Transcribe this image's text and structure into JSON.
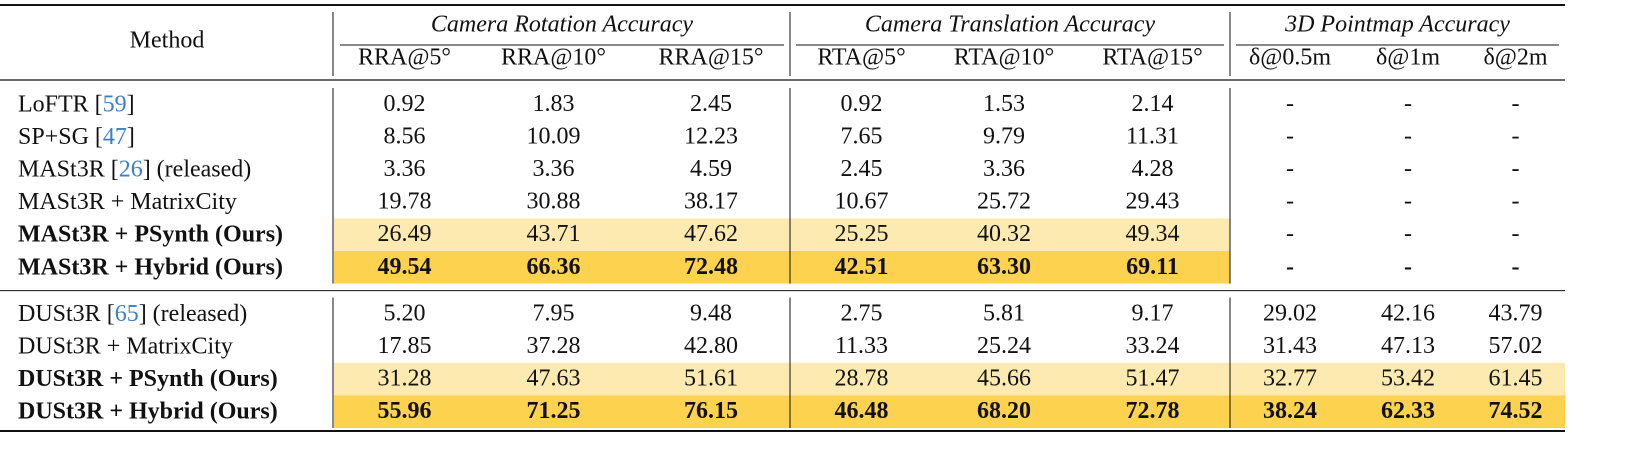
{
  "table": {
    "header": {
      "method": "Method",
      "groups": [
        {
          "title": "Camera Rotation Accuracy",
          "columns": [
            "RRA@5°",
            "RRA@10°",
            "RRA@15°"
          ]
        },
        {
          "title": "Camera Translation Accuracy",
          "columns": [
            "RTA@5°",
            "RTA@10°",
            "RTA@15°"
          ]
        },
        {
          "title": "3D Pointmap Accuracy",
          "columns": [
            "δ@0.5m",
            "δ@1m",
            "δ@2m"
          ]
        }
      ]
    },
    "sections": [
      {
        "rows": [
          {
            "method": [
              "LoFTR [",
              "59",
              "]"
            ],
            "highlight": "none",
            "values": [
              "0.92",
              "1.83",
              "2.45",
              "0.92",
              "1.53",
              "2.14",
              "-",
              "-",
              "-"
            ]
          },
          {
            "method": [
              "SP+SG [",
              "47",
              "]"
            ],
            "highlight": "none",
            "values": [
              "8.56",
              "10.09",
              "12.23",
              "7.65",
              "9.79",
              "11.31",
              "-",
              "-",
              "-"
            ]
          },
          {
            "method": [
              "MASt3R [",
              "26",
              "] (released)"
            ],
            "highlight": "none",
            "values": [
              "3.36",
              "3.36",
              "4.59",
              "2.45",
              "3.36",
              "4.28",
              "-",
              "-",
              "-"
            ]
          },
          {
            "method": [
              "MASt3R + MatrixCity"
            ],
            "highlight": "none",
            "values": [
              "19.78",
              "30.88",
              "38.17",
              "10.67",
              "25.72",
              "29.43",
              "-",
              "-",
              "-"
            ]
          },
          {
            "method": [
              "MASt3R + PSynth (Ours)"
            ],
            "highlight": "light",
            "values": [
              "26.49",
              "43.71",
              "47.62",
              "25.25",
              "40.32",
              "49.34",
              "-",
              "-",
              "-"
            ]
          },
          {
            "method": [
              "MASt3R + Hybrid (Ours)"
            ],
            "highlight": "dark",
            "values": [
              "49.54",
              "66.36",
              "72.48",
              "42.51",
              "63.30",
              "69.11",
              "-",
              "-",
              "-"
            ]
          }
        ]
      },
      {
        "rows": [
          {
            "method": [
              "DUSt3R [",
              "65",
              "] (released)"
            ],
            "highlight": "none",
            "values": [
              "5.20",
              "7.95",
              "9.48",
              "2.75",
              "5.81",
              "9.17",
              "29.02",
              "42.16",
              "43.79"
            ]
          },
          {
            "method": [
              "DUSt3R + MatrixCity"
            ],
            "highlight": "none",
            "values": [
              "17.85",
              "37.28",
              "42.80",
              "11.33",
              "25.24",
              "33.24",
              "31.43",
              "47.13",
              "57.02"
            ]
          },
          {
            "method": [
              "DUSt3R + PSynth (Ours)"
            ],
            "highlight": "light",
            "values": [
              "31.28",
              "47.63",
              "51.61",
              "28.78",
              "45.66",
              "51.47",
              "32.77",
              "53.42",
              "61.45"
            ]
          },
          {
            "method": [
              "DUSt3R + Hybrid (Ours)"
            ],
            "highlight": "dark",
            "values": [
              "55.96",
              "71.25",
              "76.15",
              "46.48",
              "68.20",
              "72.78",
              "38.24",
              "62.33",
              "74.52"
            ]
          }
        ]
      }
    ]
  }
}
